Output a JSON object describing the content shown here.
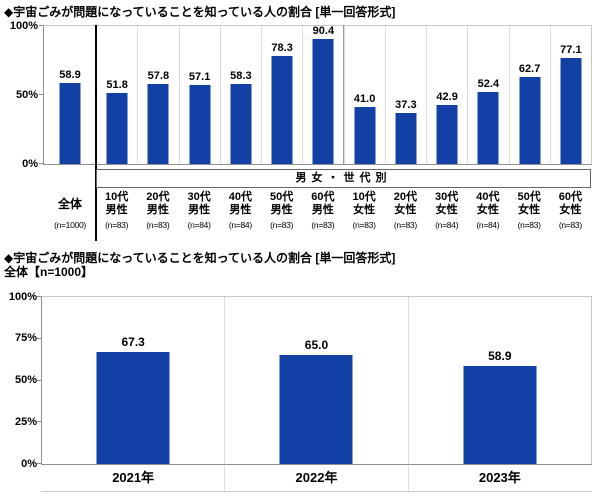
{
  "colors": {
    "bar": "#1340A5",
    "text": "#000000",
    "axis": "#8f8f8f",
    "column_separator": "#dcdcdc",
    "total_separator": "#000000",
    "gender_separator": "#9a9a9a"
  },
  "chart_data": [
    {
      "type": "bar",
      "title": "◆宇宙ごみが問題になっていることを知っている人の割合 [単一回答形式]",
      "ylabel": "",
      "ylim": [
        0,
        100
      ],
      "y_ticks": [
        "100%",
        "50%",
        "0%"
      ],
      "group_label": "男女・世代別",
      "categories": [
        "全体",
        "10代男性",
        "20代男性",
        "30代男性",
        "40代男性",
        "50代男性",
        "60代男性",
        "10代女性",
        "20代女性",
        "30代女性",
        "40代女性",
        "50代女性",
        "60代女性"
      ],
      "category_label_lines": [
        [
          "全体"
        ],
        [
          "10代",
          "男性"
        ],
        [
          "20代",
          "男性"
        ],
        [
          "30代",
          "男性"
        ],
        [
          "40代",
          "男性"
        ],
        [
          "50代",
          "男性"
        ],
        [
          "60代",
          "男性"
        ],
        [
          "10代",
          "女性"
        ],
        [
          "20代",
          "女性"
        ],
        [
          "30代",
          "女性"
        ],
        [
          "40代",
          "女性"
        ],
        [
          "50代",
          "女性"
        ],
        [
          "60代",
          "女性"
        ]
      ],
      "n_labels": [
        "(n=1000)",
        "(n=83)",
        "(n=83)",
        "(n=84)",
        "(n=84)",
        "(n=83)",
        "(n=83)",
        "(n=83)",
        "(n=83)",
        "(n=84)",
        "(n=84)",
        "(n=83)",
        "(n=83)"
      ],
      "values": [
        58.9,
        51.8,
        57.8,
        57.1,
        58.3,
        78.3,
        90.4,
        41.0,
        37.3,
        42.9,
        52.4,
        62.7,
        77.1
      ],
      "legend": "none",
      "grid": "vertical column separators only"
    },
    {
      "type": "bar",
      "title": "◆宇宙ごみが問題になっていることを知っている人の割合 [単一回答形式]",
      "subtitle": "全体【n=1000】",
      "ylabel": "",
      "ylim": [
        0,
        100
      ],
      "y_ticks": [
        "100%",
        "75%",
        "50%",
        "25%",
        "0%"
      ],
      "categories": [
        "2021年",
        "2022年",
        "2023年"
      ],
      "values": [
        67.3,
        65.0,
        58.9
      ],
      "legend": "none",
      "grid": "vertical column separators only"
    }
  ]
}
